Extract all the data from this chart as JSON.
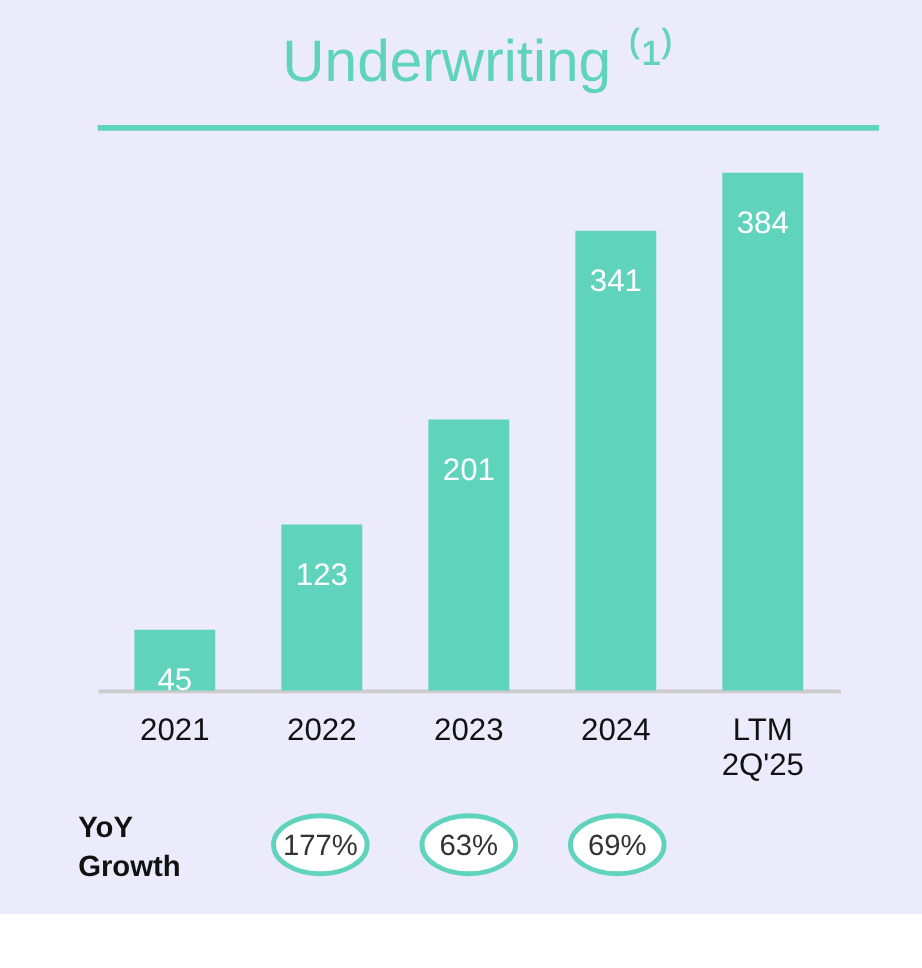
{
  "chart_data": {
    "type": "bar",
    "title": "Underwriting ⁽¹⁾",
    "categories": [
      "2021",
      "2022",
      "2023",
      "2024",
      "LTM 2Q'25"
    ],
    "values": [
      45,
      123,
      201,
      341,
      384
    ],
    "color": "#5fd3bc",
    "data_labels": true,
    "annotations": [
      "YoY Growth",
      "177%",
      "63%",
      "69%"
    ]
  }
}
